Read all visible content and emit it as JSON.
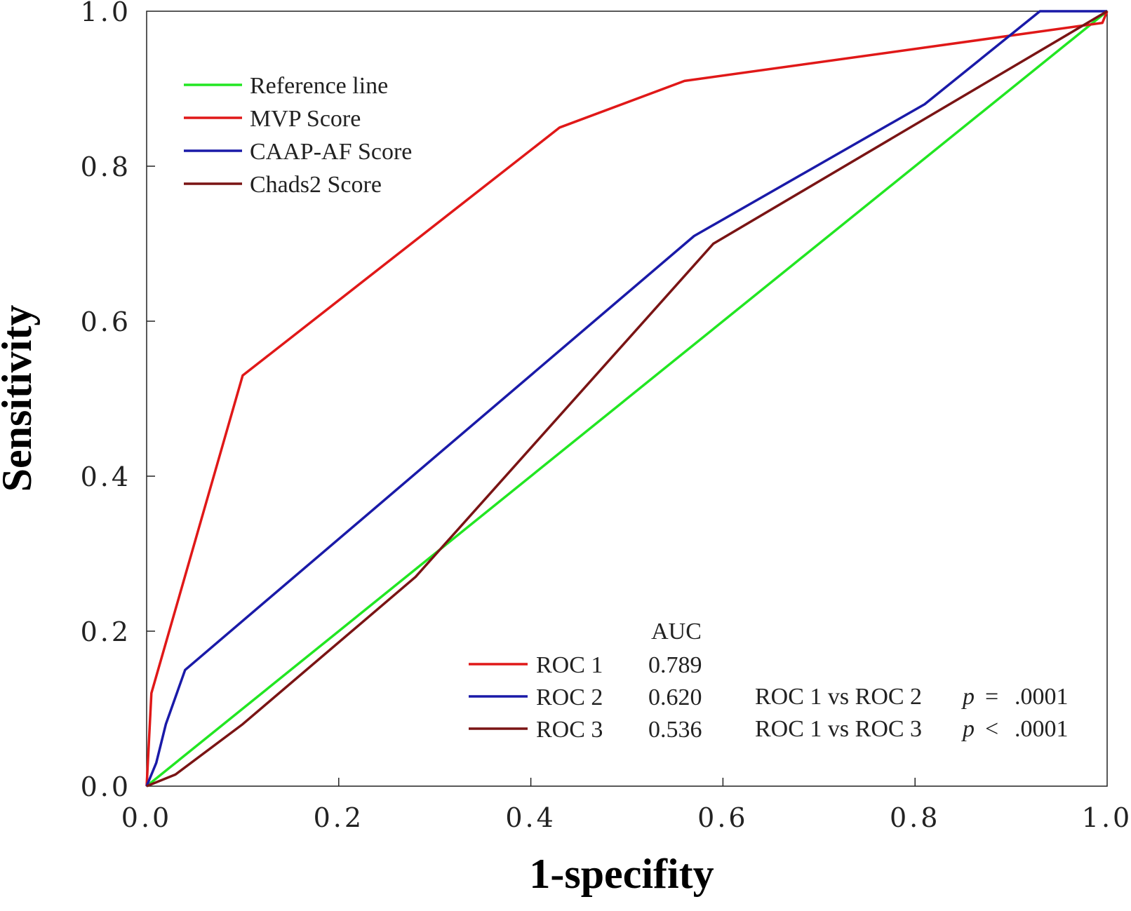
{
  "chart_data": {
    "type": "line",
    "xlabel": "1-specifity",
    "ylabel": "Sensitivity",
    "xlim": [
      0,
      1
    ],
    "ylim": [
      0,
      1
    ],
    "xticks": [
      "0.0",
      "0.2",
      "0.4",
      "0.6",
      "0.8",
      "1.0"
    ],
    "yticks": [
      "0.0",
      "0.2",
      "0.4",
      "0.6",
      "0.8",
      "1.0"
    ],
    "grid": false,
    "legend_position": "top-left",
    "series": [
      {
        "name": "Reference line",
        "color": "#22e622",
        "x": [
          0,
          1
        ],
        "y": [
          0,
          1
        ]
      },
      {
        "name": "MVP Score",
        "color": "#e01818",
        "x": [
          0,
          0.005,
          0.1,
          0.43,
          0.56,
          0.995,
          1.0
        ],
        "y": [
          0,
          0.12,
          0.53,
          0.85,
          0.91,
          0.985,
          1.0
        ]
      },
      {
        "name": "CAAP-AF Score",
        "color": "#1a1aa8",
        "x": [
          0,
          0.01,
          0.02,
          0.04,
          0.57,
          0.81,
          0.93,
          1.0
        ],
        "y": [
          0,
          0.03,
          0.08,
          0.15,
          0.71,
          0.88,
          1.0,
          1.0
        ]
      },
      {
        "name": "Chads2 Score",
        "color": "#7a1414",
        "x": [
          0,
          0.03,
          0.1,
          0.28,
          0.59,
          1.0
        ],
        "y": [
          0,
          0.015,
          0.08,
          0.27,
          0.7,
          1.0
        ]
      }
    ],
    "auc_table": {
      "header": "AUC",
      "rows": [
        {
          "label": "ROC 1",
          "value": "0.789",
          "color": "#e01818"
        },
        {
          "label": "ROC 2",
          "value": "0.620",
          "color": "#1a1aa8"
        },
        {
          "label": "ROC 3",
          "value": "0.536",
          "color": "#7a1414"
        }
      ]
    },
    "comparisons": [
      {
        "label": "ROC 1 vs ROC 2",
        "p_symbol": "p",
        "operator": "=",
        "value": ".0001"
      },
      {
        "label": "ROC 1 vs ROC 3",
        "p_symbol": "p",
        "operator": "<",
        "value": ".0001"
      }
    ]
  }
}
